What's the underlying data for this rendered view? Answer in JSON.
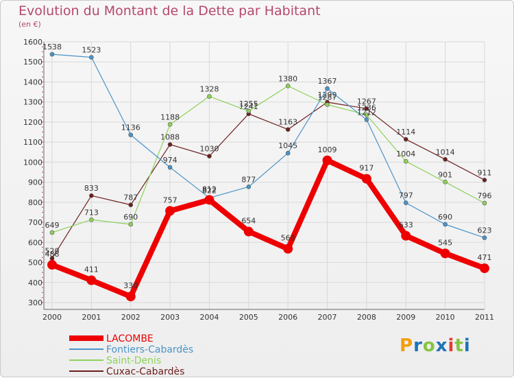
{
  "header": {
    "title": "Evolution du Montant de la Dette par Habitant",
    "unit": "(en €)"
  },
  "logo": {
    "text": "Proxiti"
  },
  "colors": {
    "title": "#b5476e",
    "grid": "#d8d8d8",
    "axis": "#666666",
    "text": "#333333",
    "logo": [
      "#f59e0b",
      "#1e73b8",
      "#84c441",
      "#1e73b8",
      "#e53935",
      "#84c441",
      "#1e73b8"
    ]
  },
  "chart_data": {
    "type": "line",
    "title": "Evolution du Montant de la Dette par Habitant",
    "subtitle": "(en €)",
    "xlabel": "",
    "ylabel": "",
    "x": [
      "2000",
      "2001",
      "2002",
      "2003",
      "2004",
      "2005",
      "2006",
      "2007",
      "2008",
      "2009",
      "2010",
      "2011"
    ],
    "ylim": [
      300,
      1600
    ],
    "yticks": [
      300,
      400,
      500,
      600,
      700,
      800,
      900,
      1000,
      1100,
      1200,
      1300,
      1400,
      1500,
      1600
    ],
    "grid": true,
    "legend": "bottom-left",
    "series": [
      {
        "name": "LACOMBE",
        "color": "#ee0000",
        "values": [
          488,
          411,
          330,
          757,
          812,
          654,
          568,
          1009,
          917,
          633,
          545,
          471
        ],
        "labels": [
          "488",
          "411",
          "330",
          "757",
          "812",
          "654",
          "568",
          "1009",
          "917",
          "633",
          "545",
          "471"
        ]
      },
      {
        "name": "Fontiers-Cabardès",
        "color": "#4a94c8",
        "values": [
          1538,
          1523,
          1136,
          974,
          822,
          877,
          1045,
          1367,
          1212,
          797,
          690,
          623
        ],
        "labels": [
          "1538",
          "1523",
          "1136",
          "974",
          "822",
          "877",
          "1045",
          "1367",
          "1212",
          "797",
          "690",
          "623"
        ]
      },
      {
        "name": "Saint-Denis",
        "color": "#8dd15a",
        "values": [
          649,
          713,
          690,
          1188,
          1328,
          1255,
          1380,
          1287,
          1236,
          1004,
          901,
          796
        ],
        "labels": [
          "649",
          "713",
          "690",
          "1188",
          "1328",
          "1255",
          "1380",
          "1287",
          "1236",
          "1004",
          "901",
          "796"
        ]
      },
      {
        "name": "Cuxac-Cabardès",
        "color": "#6e1e1e",
        "values": [
          520,
          833,
          787,
          1088,
          1030,
          1241,
          1163,
          1299,
          1267,
          1114,
          1014,
          911
        ],
        "labels": [
          "520",
          "833",
          "787",
          "1088",
          "1030",
          "1241",
          "1163",
          "1299",
          "1267",
          "1114",
          "1014",
          "911"
        ]
      }
    ]
  }
}
